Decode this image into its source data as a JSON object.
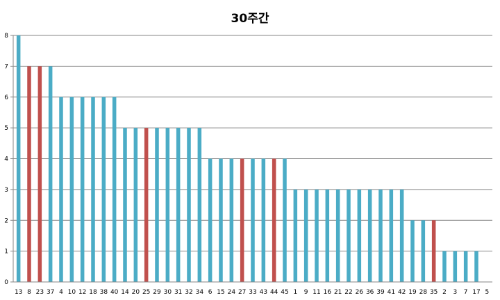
{
  "chart_data": {
    "type": "bar",
    "title": "30주간",
    "xlabel": "",
    "ylabel": "",
    "ylim": [
      0,
      8
    ],
    "yticks": [
      0,
      1,
      2,
      3,
      4,
      5,
      6,
      7,
      8
    ],
    "grid": true,
    "legend": "none",
    "categories": [
      "13",
      "8",
      "23",
      "37",
      "4",
      "10",
      "12",
      "18",
      "38",
      "40",
      "14",
      "20",
      "25",
      "29",
      "30",
      "31",
      "32",
      "34",
      "6",
      "15",
      "24",
      "27",
      "33",
      "43",
      "44",
      "45",
      "1",
      "9",
      "11",
      "16",
      "21",
      "22",
      "26",
      "36",
      "39",
      "41",
      "42",
      "19",
      "28",
      "35",
      "2",
      "3",
      "7",
      "17",
      "5"
    ],
    "values": [
      8,
      7,
      7,
      7,
      6,
      6,
      6,
      6,
      6,
      6,
      5,
      5,
      5,
      5,
      5,
      5,
      5,
      5,
      4,
      4,
      4,
      4,
      4,
      4,
      4,
      4,
      3,
      3,
      3,
      3,
      3,
      3,
      3,
      3,
      3,
      3,
      3,
      2,
      2,
      2,
      1,
      1,
      1,
      1,
      0
    ],
    "highlight": [
      "8",
      "23",
      "25",
      "27",
      "44",
      "35"
    ],
    "colors": {
      "bar": "#4bacc6",
      "highlight": "#c0504d",
      "grid": "#868686",
      "axis": "#868686"
    }
  }
}
